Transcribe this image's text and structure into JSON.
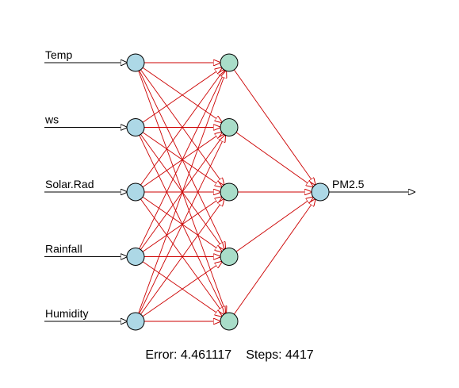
{
  "network": {
    "inputs": [
      "Temp",
      "ws",
      "Solar.Rad",
      "Rainfall",
      "Humidity"
    ],
    "hidden_count": 5,
    "output": "PM2.5",
    "colors": {
      "input_node_fill": "#add8e6",
      "hidden_node_fill": "#a9ddc9",
      "output_node_fill": "#add8e6",
      "weight_edge": "#cc0000",
      "io_arrow": "#000000"
    }
  },
  "footer": {
    "error_label": "Error:",
    "error_value": "4.461117",
    "steps_label": "Steps:",
    "steps_value": "4417"
  }
}
